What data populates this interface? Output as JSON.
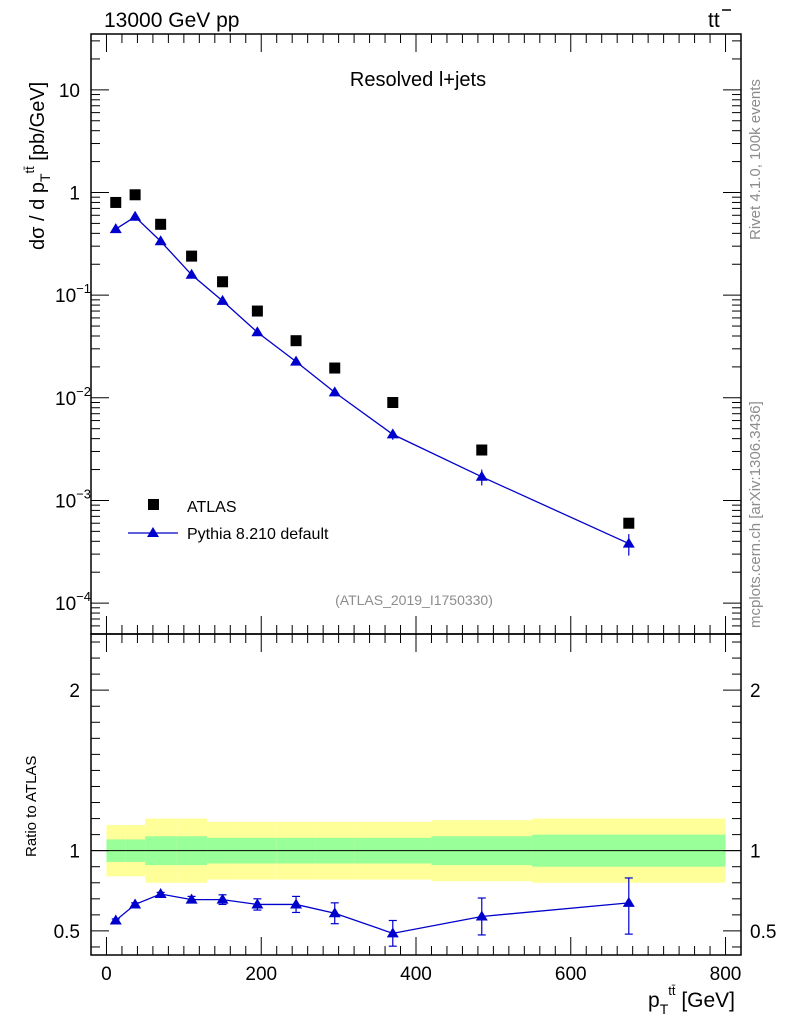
{
  "header": {
    "energy_label": "13000 GeV pp",
    "process_main": "tt",
    "process_bar": "̅"
  },
  "side_text": {
    "rivet": "Rivet 4.1.0,  100k events",
    "mcplots": "mcplots.cern.ch [arXiv:1306.3436]"
  },
  "chart_data": [
    {
      "type": "scatter",
      "panel": "main",
      "title": "Resolved l+jets",
      "watermark": "(ATLAS_2019_I1750330)",
      "xlabel": "p_T^{tt̅} [GeV]",
      "ylabel": "dσ / d p_T^{tt̅} [pb/GeV]",
      "xlim": [
        -20,
        820
      ],
      "ylim": [
        5e-05,
        35
      ],
      "yscale": "log",
      "y_ticks": [
        "10^{-4}",
        "10^{-3}",
        "10^{-2}",
        "10^{-1}",
        "1",
        "10"
      ],
      "series": [
        {
          "name": "ATLAS",
          "color": "#000000",
          "marker": "square",
          "x": [
            12,
            37,
            70,
            110,
            150,
            195,
            245,
            295,
            370,
            485,
            675
          ],
          "values": [
            0.8,
            0.95,
            0.49,
            0.24,
            0.135,
            0.07,
            0.036,
            0.0195,
            0.009,
            0.0031,
            0.0006
          ]
        },
        {
          "name": "Pythia 8.210 default",
          "color": "#0000cc",
          "marker": "triangle",
          "line": true,
          "x": [
            12,
            37,
            70,
            110,
            150,
            195,
            245,
            295,
            370,
            485,
            675
          ],
          "values": [
            0.44,
            0.58,
            0.335,
            0.158,
            0.088,
            0.0435,
            0.0225,
            0.0113,
            0.0044,
            0.0017,
            0.00038
          ],
          "err_low": [
            0.01,
            0.01,
            0.008,
            0.006,
            0.004,
            0.002,
            0.0015,
            0.0008,
            0.0005,
            0.0003,
            9e-05
          ],
          "err_high": [
            0.01,
            0.01,
            0.008,
            0.006,
            0.004,
            0.002,
            0.0015,
            0.0008,
            0.0005,
            0.0003,
            9e-05
          ]
        }
      ],
      "legend": [
        "ATLAS",
        "Pythia 8.210 default"
      ],
      "legend_position": "bottom-left"
    },
    {
      "type": "line",
      "panel": "ratio",
      "ylabel": "Ratio to ATLAS",
      "xlabel": "p_T^{tt̅} [GeV]",
      "xlim": [
        -20,
        820
      ],
      "ylim": [
        0.35,
        2.35
      ],
      "x_ticks": [
        "0",
        "200",
        "400",
        "600",
        "800"
      ],
      "x_tick_values": [
        0,
        200,
        400,
        600,
        800
      ],
      "y_ticks": [
        "0.5",
        "1",
        "2"
      ],
      "y_tick_values": [
        0.5,
        1,
        2
      ],
      "reference_line": 1,
      "bands": [
        {
          "x_low": 0,
          "x_high": 25,
          "inner": [
            0.93,
            1.07
          ],
          "outer": [
            0.84,
            1.16
          ]
        },
        {
          "x_low": 25,
          "x_high": 50,
          "inner": [
            0.93,
            1.07
          ],
          "outer": [
            0.84,
            1.16
          ]
        },
        {
          "x_low": 50,
          "x_high": 90,
          "inner": [
            0.91,
            1.09
          ],
          "outer": [
            0.8,
            1.2
          ]
        },
        {
          "x_low": 90,
          "x_high": 130,
          "inner": [
            0.91,
            1.09
          ],
          "outer": [
            0.8,
            1.2
          ]
        },
        {
          "x_low": 130,
          "x_high": 170,
          "inner": [
            0.92,
            1.08
          ],
          "outer": [
            0.82,
            1.18
          ]
        },
        {
          "x_low": 170,
          "x_high": 220,
          "inner": [
            0.92,
            1.08
          ],
          "outer": [
            0.82,
            1.18
          ]
        },
        {
          "x_low": 220,
          "x_high": 270,
          "inner": [
            0.92,
            1.08
          ],
          "outer": [
            0.82,
            1.18
          ]
        },
        {
          "x_low": 270,
          "x_high": 320,
          "inner": [
            0.92,
            1.08
          ],
          "outer": [
            0.82,
            1.18
          ]
        },
        {
          "x_low": 320,
          "x_high": 420,
          "inner": [
            0.92,
            1.08
          ],
          "outer": [
            0.82,
            1.18
          ]
        },
        {
          "x_low": 420,
          "x_high": 550,
          "inner": [
            0.91,
            1.09
          ],
          "outer": [
            0.81,
            1.19
          ]
        },
        {
          "x_low": 550,
          "x_high": 800,
          "inner": [
            0.9,
            1.1
          ],
          "outer": [
            0.8,
            1.2
          ]
        }
      ],
      "band_colors": {
        "inner": "#99ff99",
        "outer": "#ffff99"
      },
      "series": [
        {
          "name": "Pythia 8.210 default / ATLAS",
          "color": "#0000cc",
          "marker": "triangle",
          "x": [
            12,
            37,
            70,
            110,
            150,
            195,
            245,
            295,
            370,
            485,
            675
          ],
          "values": [
            0.565,
            0.665,
            0.73,
            0.695,
            0.695,
            0.665,
            0.665,
            0.61,
            0.485,
            0.59,
            0.675
          ],
          "err_low": [
            0.01,
            0.01,
            0.01,
            0.02,
            0.03,
            0.035,
            0.05,
            0.065,
            0.08,
            0.115,
            0.195
          ],
          "err_high": [
            0.01,
            0.01,
            0.01,
            0.02,
            0.03,
            0.035,
            0.05,
            0.065,
            0.08,
            0.115,
            0.155
          ]
        }
      ]
    }
  ]
}
